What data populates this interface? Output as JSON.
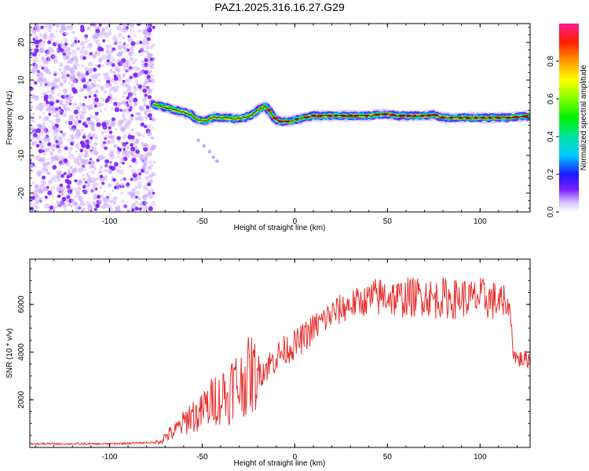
{
  "title": "PAZ1.2025.316.16.27.G29",
  "colors": {
    "snr_line": "#e8302e",
    "scatter": "#7a1cff",
    "frame": "#000000"
  },
  "chart_data": [
    {
      "type": "heatmap",
      "name": "spectrogram",
      "xlabel": "Height of straight line (km)",
      "ylabel": "Frequency (Hz)",
      "xlim": [
        -143,
        127
      ],
      "ylim": [
        -25,
        25
      ],
      "xticks": [
        -100,
        -50,
        0,
        50,
        100
      ],
      "xtick_labels": [
        "-100",
        "-50",
        "0",
        "50",
        "100"
      ],
      "yticks": [
        -20,
        -10,
        0,
        10,
        20
      ],
      "ytick_labels": [
        "-20",
        "-10",
        "0",
        "10",
        "20"
      ],
      "noise_region_x": [
        -143,
        -76
      ],
      "track": {
        "x": [
          -76,
          -72,
          -68,
          -64,
          -60,
          -56,
          -52,
          -48,
          -44,
          -40,
          -36,
          -32,
          -28,
          -24,
          -20,
          -16,
          -14,
          -12,
          -10,
          -8,
          -6,
          -4,
          -2,
          0,
          5,
          10,
          15,
          20,
          25,
          30,
          35,
          40,
          45,
          50,
          55,
          60,
          65,
          70,
          75,
          80,
          85,
          90,
          95,
          100,
          105,
          110,
          115,
          120,
          127
        ],
        "y": [
          3.5,
          3.0,
          2.5,
          2.0,
          1.5,
          0.8,
          -0.8,
          -0.8,
          0.2,
          0.0,
          0.0,
          -0.3,
          0.0,
          0.5,
          2.0,
          3.0,
          2.0,
          0.5,
          -0.5,
          -1.0,
          -1.0,
          -1.0,
          -1.0,
          -0.5,
          0.0,
          0.5,
          0.5,
          0.5,
          0.5,
          0.5,
          0.5,
          0.5,
          0.8,
          1.0,
          0.5,
          0.5,
          0.5,
          0.5,
          0.8,
          0.0,
          0.0,
          0.0,
          0.0,
          0.0,
          0.0,
          0.0,
          0.0,
          0.2,
          0.5
        ]
      },
      "branch": {
        "x": [
          -52,
          -49,
          -46,
          -44,
          -42
        ],
        "y": [
          -6,
          -7.5,
          -9,
          -10.5,
          -11.5
        ]
      }
    },
    {
      "type": "colorbar",
      "name": "colorbar",
      "label": "Normalized spectral amplitude",
      "range": [
        0,
        1
      ],
      "ticks": [
        0,
        0.2,
        0.4,
        0.6,
        0.8
      ],
      "tick_labels": [
        "0.0",
        "0.2",
        "0.4",
        "0.6",
        "0.8"
      ]
    },
    {
      "type": "line",
      "name": "snr",
      "xlabel": "Height of straight line (km)",
      "ylabel": "SNR (10 * v/v)",
      "xlim": [
        -143,
        127
      ],
      "ylim": [
        0,
        7900
      ],
      "xticks": [
        -100,
        -50,
        0,
        50,
        100
      ],
      "xtick_labels": [
        "-100",
        "-50",
        "0",
        "50",
        "100"
      ],
      "yticks": [
        2000,
        4000,
        6000
      ],
      "ytick_labels": [
        "2000",
        "4000",
        "6000"
      ],
      "series": [
        {
          "name": "SNR",
          "x": [
            -143,
            -120,
            -100,
            -80,
            -75,
            -72,
            -70,
            -68,
            -65,
            -62,
            -60,
            -58,
            -56,
            -54,
            -52,
            -50,
            -48,
            -46,
            -44,
            -42,
            -40,
            -38,
            -36,
            -34,
            -32,
            -30,
            -28,
            -26,
            -24,
            -22,
            -20,
            -18,
            -15,
            -12,
            -10,
            -5,
            0,
            5,
            10,
            15,
            20,
            25,
            30,
            35,
            40,
            45,
            50,
            55,
            60,
            65,
            70,
            75,
            80,
            85,
            90,
            95,
            100,
            105,
            110,
            112,
            114,
            116,
            118,
            120,
            122,
            125,
            127
          ],
          "y": [
            150,
            150,
            150,
            200,
            200,
            300,
            450,
            550,
            650,
            900,
            1000,
            1200,
            1400,
            1350,
            1300,
            1500,
            1800,
            1600,
            2200,
            2000,
            2000,
            2400,
            1900,
            2600,
            2700,
            2500,
            2800,
            2900,
            3100,
            3000,
            3300,
            3200,
            3400,
            3600,
            3800,
            4100,
            4300,
            4600,
            5000,
            5300,
            5600,
            5800,
            6000,
            6100,
            6200,
            6300,
            6400,
            6200,
            6300,
            6300,
            6400,
            6200,
            6300,
            6200,
            6300,
            6200,
            6300,
            6200,
            6100,
            6000,
            5900,
            5900,
            4000,
            3700,
            3700,
            3700,
            3700
          ]
        }
      ]
    }
  ]
}
